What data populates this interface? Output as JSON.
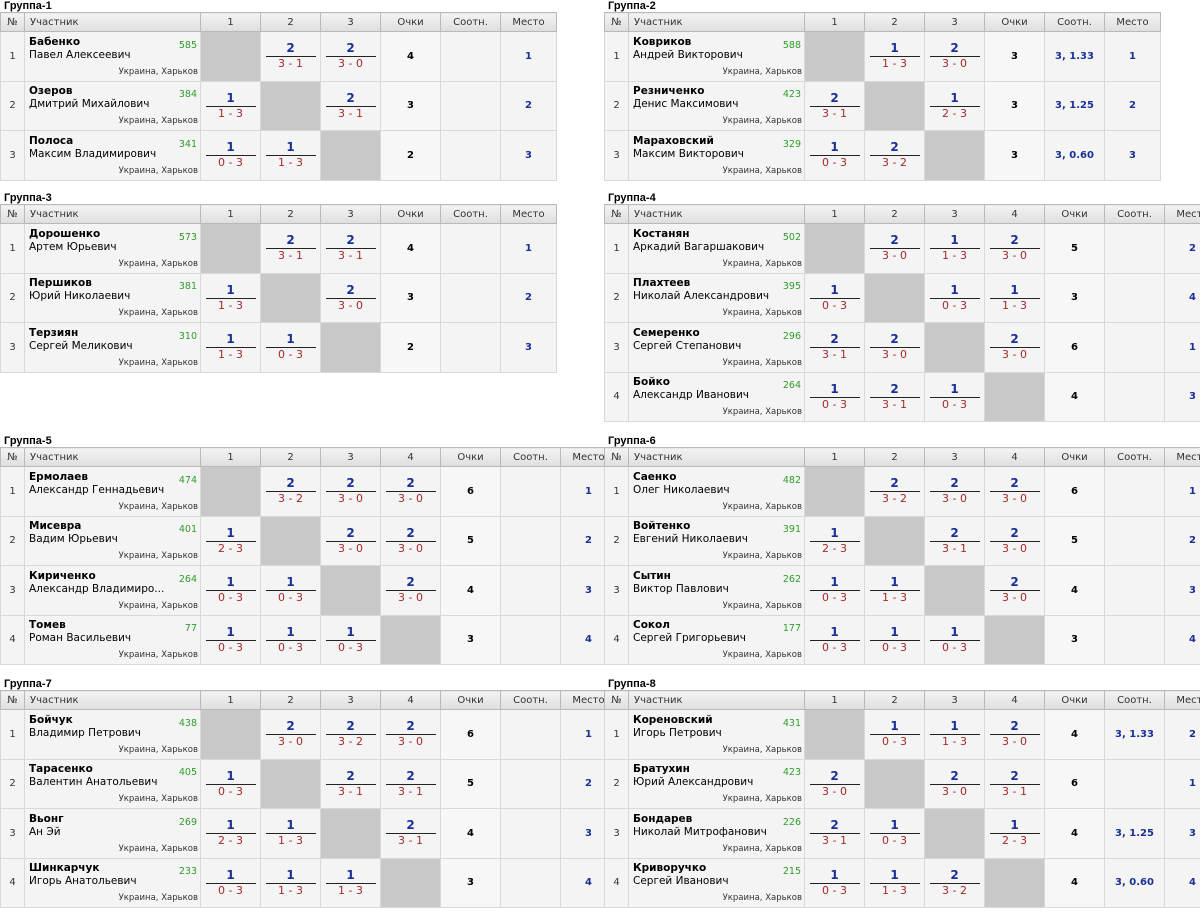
{
  "city": "Украина, Харьков",
  "labels": {
    "num": "№",
    "participant": "Участник",
    "points": "Очки",
    "ratio": "Соотн.",
    "place": "Место"
  },
  "groups": [
    {
      "title": "Группа-1",
      "cols": [
        "1",
        "2",
        "3"
      ],
      "players": [
        {
          "n": "1",
          "surname": "Бабенко",
          "name": "Павел Алексеевич",
          "rating": "585",
          "res": [
            null,
            {
              "p": "2",
              "s": "3 - 1"
            },
            {
              "p": "2",
              "s": "3 - 0"
            }
          ],
          "total": "4",
          "ratio": "",
          "place": "1"
        },
        {
          "n": "2",
          "surname": "Озеров",
          "name": "Дмитрий Михайлович",
          "rating": "384",
          "res": [
            {
              "p": "1",
              "s": "1 - 3"
            },
            null,
            {
              "p": "2",
              "s": "3 - 1"
            }
          ],
          "total": "3",
          "ratio": "",
          "place": "2"
        },
        {
          "n": "3",
          "surname": "Полоса",
          "name": "Максим Владимирович",
          "rating": "341",
          "res": [
            {
              "p": "1",
              "s": "0 - 3"
            },
            {
              "p": "1",
              "s": "1 - 3"
            },
            null
          ],
          "total": "2",
          "ratio": "",
          "place": "3"
        }
      ]
    },
    {
      "title": "Группа-2",
      "cols": [
        "1",
        "2",
        "3"
      ],
      "players": [
        {
          "n": "1",
          "surname": "Ковриков",
          "name": "Андрей Викторович",
          "rating": "588",
          "res": [
            null,
            {
              "p": "1",
              "s": "1 - 3"
            },
            {
              "p": "2",
              "s": "3 - 0"
            }
          ],
          "total": "3",
          "ratio": "3, 1.33",
          "place": "1"
        },
        {
          "n": "2",
          "surname": "Резниченко",
          "name": "Денис Максимович",
          "rating": "423",
          "res": [
            {
              "p": "2",
              "s": "3 - 1"
            },
            null,
            {
              "p": "1",
              "s": "2 - 3"
            }
          ],
          "total": "3",
          "ratio": "3, 1.25",
          "place": "2"
        },
        {
          "n": "3",
          "surname": "Мараховский",
          "name": "Максим Викторович",
          "rating": "329",
          "res": [
            {
              "p": "1",
              "s": "0 - 3"
            },
            {
              "p": "2",
              "s": "3 - 2"
            },
            null
          ],
          "total": "3",
          "ratio": "3, 0.60",
          "place": "3"
        }
      ]
    },
    {
      "title": "Группа-3",
      "cols": [
        "1",
        "2",
        "3"
      ],
      "players": [
        {
          "n": "1",
          "surname": "Дорошенко",
          "name": "Артем Юрьевич",
          "rating": "573",
          "res": [
            null,
            {
              "p": "2",
              "s": "3 - 1"
            },
            {
              "p": "2",
              "s": "3 - 1"
            }
          ],
          "total": "4",
          "ratio": "",
          "place": "1"
        },
        {
          "n": "2",
          "surname": "Першиков",
          "name": "Юрий Николаевич",
          "rating": "381",
          "res": [
            {
              "p": "1",
              "s": "1 - 3"
            },
            null,
            {
              "p": "2",
              "s": "3 - 0"
            }
          ],
          "total": "3",
          "ratio": "",
          "place": "2"
        },
        {
          "n": "3",
          "surname": "Терзиян",
          "name": "Сергей Меликович",
          "rating": "310",
          "res": [
            {
              "p": "1",
              "s": "1 - 3"
            },
            {
              "p": "1",
              "s": "0 - 3"
            },
            null
          ],
          "total": "2",
          "ratio": "",
          "place": "3"
        }
      ]
    },
    {
      "title": "Группа-4",
      "cols": [
        "1",
        "2",
        "3",
        "4"
      ],
      "players": [
        {
          "n": "1",
          "surname": "Костанян",
          "name": "Аркадий Вагаршакович",
          "rating": "502",
          "res": [
            null,
            {
              "p": "2",
              "s": "3 - 0"
            },
            {
              "p": "1",
              "s": "1 - 3"
            },
            {
              "p": "2",
              "s": "3 - 0"
            }
          ],
          "total": "5",
          "ratio": "",
          "place": "2"
        },
        {
          "n": "2",
          "surname": "Плахтеев",
          "name": "Николай Александрович",
          "rating": "395",
          "res": [
            {
              "p": "1",
              "s": "0 - 3"
            },
            null,
            {
              "p": "1",
              "s": "0 - 3"
            },
            {
              "p": "1",
              "s": "1 - 3"
            }
          ],
          "total": "3",
          "ratio": "",
          "place": "4"
        },
        {
          "n": "3",
          "surname": "Семеренко",
          "name": "Сергей Степанович",
          "rating": "296",
          "res": [
            {
              "p": "2",
              "s": "3 - 1"
            },
            {
              "p": "2",
              "s": "3 - 0"
            },
            null,
            {
              "p": "2",
              "s": "3 - 0"
            }
          ],
          "total": "6",
          "ratio": "",
          "place": "1"
        },
        {
          "n": "4",
          "surname": "Бойко",
          "name": "Александр Иванович",
          "rating": "264",
          "res": [
            {
              "p": "1",
              "s": "0 - 3"
            },
            {
              "p": "2",
              "s": "3 - 1"
            },
            {
              "p": "1",
              "s": "0 - 3"
            },
            null
          ],
          "total": "4",
          "ratio": "",
          "place": "3"
        }
      ]
    },
    {
      "title": "Группа-5",
      "cols": [
        "1",
        "2",
        "3",
        "4"
      ],
      "players": [
        {
          "n": "1",
          "surname": "Ермолаев",
          "name": "Александр Геннадьевич",
          "rating": "474",
          "res": [
            null,
            {
              "p": "2",
              "s": "3 - 2"
            },
            {
              "p": "2",
              "s": "3 - 0"
            },
            {
              "p": "2",
              "s": "3 - 0"
            }
          ],
          "total": "6",
          "ratio": "",
          "place": "1"
        },
        {
          "n": "2",
          "surname": "Мисевра",
          "name": "Вадим Юрьевич",
          "rating": "401",
          "res": [
            {
              "p": "1",
              "s": "2 - 3"
            },
            null,
            {
              "p": "2",
              "s": "3 - 0"
            },
            {
              "p": "2",
              "s": "3 - 0"
            }
          ],
          "total": "5",
          "ratio": "",
          "place": "2"
        },
        {
          "n": "3",
          "surname": "Кириченко",
          "name": "Александр Владимиро...",
          "rating": "264",
          "res": [
            {
              "p": "1",
              "s": "0 - 3"
            },
            {
              "p": "1",
              "s": "0 - 3"
            },
            null,
            {
              "p": "2",
              "s": "3 - 0"
            }
          ],
          "total": "4",
          "ratio": "",
          "place": "3"
        },
        {
          "n": "4",
          "surname": "Томев",
          "name": "Роман Васильевич",
          "rating": "77",
          "res": [
            {
              "p": "1",
              "s": "0 - 3"
            },
            {
              "p": "1",
              "s": "0 - 3"
            },
            {
              "p": "1",
              "s": "0 - 3"
            },
            null
          ],
          "total": "3",
          "ratio": "",
          "place": "4"
        }
      ]
    },
    {
      "title": "Группа-6",
      "cols": [
        "1",
        "2",
        "3",
        "4"
      ],
      "players": [
        {
          "n": "1",
          "surname": "Саенко",
          "name": "Олег Николаевич",
          "rating": "482",
          "res": [
            null,
            {
              "p": "2",
              "s": "3 - 2"
            },
            {
              "p": "2",
              "s": "3 - 0"
            },
            {
              "p": "2",
              "s": "3 - 0"
            }
          ],
          "total": "6",
          "ratio": "",
          "place": "1"
        },
        {
          "n": "2",
          "surname": "Войтенко",
          "name": "Евгений Николаевич",
          "rating": "391",
          "res": [
            {
              "p": "1",
              "s": "2 - 3"
            },
            null,
            {
              "p": "2",
              "s": "3 - 1"
            },
            {
              "p": "2",
              "s": "3 - 0"
            }
          ],
          "total": "5",
          "ratio": "",
          "place": "2"
        },
        {
          "n": "3",
          "surname": "Сытин",
          "name": "Виктор Павлович",
          "rating": "262",
          "res": [
            {
              "p": "1",
              "s": "0 - 3"
            },
            {
              "p": "1",
              "s": "1 - 3"
            },
            null,
            {
              "p": "2",
              "s": "3 - 0"
            }
          ],
          "total": "4",
          "ratio": "",
          "place": "3"
        },
        {
          "n": "4",
          "surname": "Сокол",
          "name": "Сергей Григорьевич",
          "rating": "177",
          "res": [
            {
              "p": "1",
              "s": "0 - 3"
            },
            {
              "p": "1",
              "s": "0 - 3"
            },
            {
              "p": "1",
              "s": "0 - 3"
            },
            null
          ],
          "total": "3",
          "ratio": "",
          "place": "4"
        }
      ]
    },
    {
      "title": "Группа-7",
      "cols": [
        "1",
        "2",
        "3",
        "4"
      ],
      "players": [
        {
          "n": "1",
          "surname": "Бойчук",
          "name": "Владимир Петрович",
          "rating": "438",
          "res": [
            null,
            {
              "p": "2",
              "s": "3 - 0"
            },
            {
              "p": "2",
              "s": "3 - 2"
            },
            {
              "p": "2",
              "s": "3 - 0"
            }
          ],
          "total": "6",
          "ratio": "",
          "place": "1"
        },
        {
          "n": "2",
          "surname": "Тарасенко",
          "name": "Валентин Анатольевич",
          "rating": "405",
          "res": [
            {
              "p": "1",
              "s": "0 - 3"
            },
            null,
            {
              "p": "2",
              "s": "3 - 1"
            },
            {
              "p": "2",
              "s": "3 - 1"
            }
          ],
          "total": "5",
          "ratio": "",
          "place": "2"
        },
        {
          "n": "3",
          "surname": "Вьонг",
          "name": "Ан Эй",
          "rating": "269",
          "res": [
            {
              "p": "1",
              "s": "2 - 3"
            },
            {
              "p": "1",
              "s": "1 - 3"
            },
            null,
            {
              "p": "2",
              "s": "3 - 1"
            }
          ],
          "total": "4",
          "ratio": "",
          "place": "3"
        },
        {
          "n": "4",
          "surname": "Шинкарчук",
          "name": "Игорь Анатольевич",
          "rating": "233",
          "res": [
            {
              "p": "1",
              "s": "0 - 3"
            },
            {
              "p": "1",
              "s": "1 - 3"
            },
            {
              "p": "1",
              "s": "1 - 3"
            },
            null
          ],
          "total": "3",
          "ratio": "",
          "place": "4"
        }
      ]
    },
    {
      "title": "Группа-8",
      "cols": [
        "1",
        "2",
        "3",
        "4"
      ],
      "players": [
        {
          "n": "1",
          "surname": "Кореновский",
          "name": "Игорь Петрович",
          "rating": "431",
          "res": [
            null,
            {
              "p": "1",
              "s": "0 - 3"
            },
            {
              "p": "1",
              "s": "1 - 3"
            },
            {
              "p": "2",
              "s": "3 - 0"
            }
          ],
          "total": "4",
          "ratio": "3, 1.33",
          "place": "2"
        },
        {
          "n": "2",
          "surname": "Братухин",
          "name": "Юрий Александрович",
          "rating": "423",
          "res": [
            {
              "p": "2",
              "s": "3 - 0"
            },
            null,
            {
              "p": "2",
              "s": "3 - 0"
            },
            {
              "p": "2",
              "s": "3 - 1"
            }
          ],
          "total": "6",
          "ratio": "",
          "place": "1"
        },
        {
          "n": "3",
          "surname": "Бондарев",
          "name": "Николай Митрофанович",
          "rating": "226",
          "res": [
            {
              "p": "2",
              "s": "3 - 1"
            },
            {
              "p": "1",
              "s": "0 - 3"
            },
            null,
            {
              "p": "1",
              "s": "2 - 3"
            }
          ],
          "total": "4",
          "ratio": "3, 1.25",
          "place": "3"
        },
        {
          "n": "4",
          "surname": "Криворучко",
          "name": "Сергей Иванович",
          "rating": "215",
          "res": [
            {
              "p": "1",
              "s": "0 - 3"
            },
            {
              "p": "1",
              "s": "1 - 3"
            },
            {
              "p": "2",
              "s": "3 - 2"
            },
            null
          ],
          "total": "4",
          "ratio": "3, 0.60",
          "place": "4"
        }
      ]
    }
  ]
}
